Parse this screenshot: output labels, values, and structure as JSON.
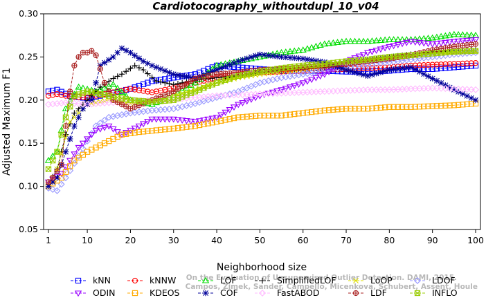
{
  "chart_data": {
    "type": "line",
    "title": "Cardiotocography_withoutdupl_10_v04",
    "xlabel": "Neighborhood size",
    "ylabel": "Adjusted Maximum F1",
    "xlim": [
      1,
      100
    ],
    "ylim": [
      0.05,
      0.3
    ],
    "xticks": [
      1,
      10,
      20,
      30,
      40,
      50,
      60,
      70,
      80,
      90,
      100
    ],
    "yticks": [
      0.05,
      0.1,
      0.15,
      0.2,
      0.25,
      0.3
    ],
    "ytick_labels": [
      "0.05",
      "0.10",
      "0.15",
      "0.20",
      "0.25",
      "0.30"
    ],
    "grid": false,
    "legend_position": "bottom",
    "watermark": [
      "Campos, Zimek, Sander, Campello, Micenkova, Schubert, Assent, Houle",
      "On the Evaluation of Unsupervised Outlier Detection. DAMI, 2015."
    ],
    "series": [
      {
        "name": "kNN",
        "color": "#0000ff",
        "marker": "square",
        "points": [
          [
            1,
            0.21
          ],
          [
            3,
            0.212
          ],
          [
            6,
            0.205
          ],
          [
            10,
            0.202
          ],
          [
            15,
            0.207
          ],
          [
            20,
            0.213
          ],
          [
            25,
            0.222
          ],
          [
            30,
            0.226
          ],
          [
            35,
            0.23
          ],
          [
            40,
            0.24
          ],
          [
            45,
            0.238
          ],
          [
            50,
            0.236
          ],
          [
            55,
            0.234
          ],
          [
            60,
            0.234
          ],
          [
            65,
            0.234
          ],
          [
            70,
            0.233
          ],
          [
            75,
            0.233
          ],
          [
            80,
            0.234
          ],
          [
            85,
            0.236
          ],
          [
            90,
            0.236
          ],
          [
            95,
            0.238
          ],
          [
            100,
            0.24
          ]
        ]
      },
      {
        "name": "kNNW",
        "color": "#ff0000",
        "marker": "circle",
        "points": [
          [
            1,
            0.205
          ],
          [
            3,
            0.207
          ],
          [
            6,
            0.204
          ],
          [
            10,
            0.203
          ],
          [
            15,
            0.208
          ],
          [
            20,
            0.213
          ],
          [
            25,
            0.209
          ],
          [
            30,
            0.214
          ],
          [
            35,
            0.22
          ],
          [
            40,
            0.226
          ],
          [
            45,
            0.23
          ],
          [
            50,
            0.232
          ],
          [
            55,
            0.233
          ],
          [
            60,
            0.234
          ],
          [
            65,
            0.235
          ],
          [
            70,
            0.236
          ],
          [
            75,
            0.237
          ],
          [
            80,
            0.238
          ],
          [
            85,
            0.24
          ],
          [
            90,
            0.241
          ],
          [
            95,
            0.242
          ],
          [
            100,
            0.243
          ]
        ]
      },
      {
        "name": "LOF",
        "color": "#00dd00",
        "marker": "triangle-up",
        "points": [
          [
            1,
            0.13
          ],
          [
            3,
            0.14
          ],
          [
            5,
            0.19
          ],
          [
            8,
            0.215
          ],
          [
            12,
            0.21
          ],
          [
            16,
            0.218
          ],
          [
            20,
            0.2
          ],
          [
            25,
            0.195
          ],
          [
            30,
            0.205
          ],
          [
            35,
            0.22
          ],
          [
            40,
            0.24
          ],
          [
            45,
            0.245
          ],
          [
            50,
            0.25
          ],
          [
            55,
            0.255
          ],
          [
            60,
            0.258
          ],
          [
            65,
            0.265
          ],
          [
            70,
            0.268
          ],
          [
            75,
            0.268
          ],
          [
            80,
            0.27
          ],
          [
            85,
            0.27
          ],
          [
            90,
            0.272
          ],
          [
            95,
            0.276
          ],
          [
            100,
            0.275
          ]
        ]
      },
      {
        "name": "SimplifiedLOF",
        "color": "#000000",
        "marker": "plus",
        "points": [
          [
            1,
            0.102
          ],
          [
            3,
            0.12
          ],
          [
            5,
            0.16
          ],
          [
            7,
            0.185
          ],
          [
            10,
            0.2
          ],
          [
            13,
            0.215
          ],
          [
            16,
            0.225
          ],
          [
            18,
            0.23
          ],
          [
            21,
            0.24
          ],
          [
            23,
            0.235
          ],
          [
            26,
            0.222
          ],
          [
            30,
            0.218
          ],
          [
            35,
            0.223
          ],
          [
            40,
            0.226
          ],
          [
            45,
            0.228
          ],
          [
            50,
            0.232
          ],
          [
            55,
            0.235
          ],
          [
            60,
            0.236
          ],
          [
            65,
            0.238
          ],
          [
            70,
            0.243
          ],
          [
            75,
            0.247
          ],
          [
            80,
            0.25
          ],
          [
            85,
            0.253
          ],
          [
            90,
            0.256
          ],
          [
            95,
            0.257
          ],
          [
            100,
            0.258
          ]
        ]
      },
      {
        "name": "LoOP",
        "color": "#dddd00",
        "marker": "x",
        "points": [
          [
            1,
            0.1
          ],
          [
            3,
            0.12
          ],
          [
            6,
            0.175
          ],
          [
            10,
            0.195
          ],
          [
            15,
            0.2
          ],
          [
            20,
            0.196
          ],
          [
            25,
            0.198
          ],
          [
            30,
            0.205
          ],
          [
            35,
            0.212
          ],
          [
            40,
            0.22
          ],
          [
            45,
            0.226
          ],
          [
            50,
            0.23
          ],
          [
            55,
            0.233
          ],
          [
            60,
            0.236
          ],
          [
            65,
            0.24
          ],
          [
            70,
            0.243
          ],
          [
            75,
            0.245
          ],
          [
            80,
            0.248
          ],
          [
            85,
            0.25
          ],
          [
            90,
            0.253
          ],
          [
            95,
            0.255
          ],
          [
            100,
            0.256
          ]
        ]
      },
      {
        "name": "LDOF",
        "color": "#9999ff",
        "marker": "diamond",
        "points": [
          [
            1,
            0.098
          ],
          [
            3,
            0.095
          ],
          [
            5,
            0.11
          ],
          [
            8,
            0.135
          ],
          [
            12,
            0.17
          ],
          [
            15,
            0.18
          ],
          [
            20,
            0.185
          ],
          [
            25,
            0.188
          ],
          [
            30,
            0.19
          ],
          [
            35,
            0.196
          ],
          [
            40,
            0.203
          ],
          [
            45,
            0.21
          ],
          [
            50,
            0.22
          ],
          [
            55,
            0.226
          ],
          [
            60,
            0.23
          ],
          [
            65,
            0.234
          ],
          [
            70,
            0.238
          ],
          [
            75,
            0.241
          ],
          [
            80,
            0.244
          ],
          [
            85,
            0.247
          ],
          [
            90,
            0.25
          ],
          [
            95,
            0.253
          ],
          [
            100,
            0.255
          ]
        ]
      },
      {
        "name": "ODIN",
        "color": "#9900ff",
        "marker": "triangle-down",
        "points": [
          [
            1,
            0.105
          ],
          [
            4,
            0.115
          ],
          [
            8,
            0.145
          ],
          [
            12,
            0.165
          ],
          [
            15,
            0.17
          ],
          [
            18,
            0.16
          ],
          [
            22,
            0.17
          ],
          [
            25,
            0.178
          ],
          [
            30,
            0.178
          ],
          [
            35,
            0.175
          ],
          [
            40,
            0.18
          ],
          [
            45,
            0.195
          ],
          [
            50,
            0.205
          ],
          [
            55,
            0.212
          ],
          [
            60,
            0.22
          ],
          [
            65,
            0.23
          ],
          [
            70,
            0.245
          ],
          [
            75,
            0.255
          ],
          [
            80,
            0.262
          ],
          [
            85,
            0.268
          ],
          [
            90,
            0.265
          ],
          [
            95,
            0.268
          ],
          [
            100,
            0.27
          ]
        ]
      },
      {
        "name": "KDEOS",
        "color": "#ffaa00",
        "marker": "square",
        "points": [
          [
            1,
            0.1
          ],
          [
            4,
            0.11
          ],
          [
            7,
            0.13
          ],
          [
            10,
            0.14
          ],
          [
            14,
            0.15
          ],
          [
            18,
            0.16
          ],
          [
            22,
            0.163
          ],
          [
            26,
            0.165
          ],
          [
            30,
            0.167
          ],
          [
            35,
            0.17
          ],
          [
            40,
            0.175
          ],
          [
            45,
            0.18
          ],
          [
            50,
            0.182
          ],
          [
            55,
            0.182
          ],
          [
            60,
            0.185
          ],
          [
            65,
            0.188
          ],
          [
            70,
            0.19
          ],
          [
            75,
            0.19
          ],
          [
            80,
            0.192
          ],
          [
            85,
            0.192
          ],
          [
            90,
            0.193
          ],
          [
            95,
            0.194
          ],
          [
            100,
            0.196
          ]
        ]
      },
      {
        "name": "COF",
        "color": "#000099",
        "marker": "asterisk",
        "points": [
          [
            1,
            0.1
          ],
          [
            3,
            0.11
          ],
          [
            5,
            0.14
          ],
          [
            7,
            0.17
          ],
          [
            9,
            0.19
          ],
          [
            11,
            0.2
          ],
          [
            13,
            0.24
          ],
          [
            16,
            0.25
          ],
          [
            18,
            0.26
          ],
          [
            20,
            0.255
          ],
          [
            23,
            0.245
          ],
          [
            25,
            0.24
          ],
          [
            30,
            0.23
          ],
          [
            35,
            0.225
          ],
          [
            40,
            0.235
          ],
          [
            45,
            0.245
          ],
          [
            50,
            0.253
          ],
          [
            55,
            0.25
          ],
          [
            60,
            0.248
          ],
          [
            65,
            0.244
          ],
          [
            70,
            0.235
          ],
          [
            75,
            0.228
          ],
          [
            80,
            0.235
          ],
          [
            85,
            0.238
          ],
          [
            90,
            0.225
          ],
          [
            95,
            0.212
          ],
          [
            100,
            0.2
          ]
        ]
      },
      {
        "name": "FastABOD",
        "color": "#ffbbff",
        "marker": "diamond",
        "points": [
          [
            1,
            0.195
          ],
          [
            5,
            0.197
          ],
          [
            10,
            0.195
          ],
          [
            15,
            0.197
          ],
          [
            20,
            0.198
          ],
          [
            25,
            0.2
          ],
          [
            30,
            0.201
          ],
          [
            35,
            0.203
          ],
          [
            40,
            0.205
          ],
          [
            45,
            0.206
          ],
          [
            50,
            0.207
          ],
          [
            55,
            0.208
          ],
          [
            60,
            0.209
          ],
          [
            65,
            0.21
          ],
          [
            70,
            0.211
          ],
          [
            75,
            0.212
          ],
          [
            80,
            0.212
          ],
          [
            85,
            0.213
          ],
          [
            90,
            0.214
          ],
          [
            95,
            0.213
          ],
          [
            100,
            0.212
          ]
        ]
      },
      {
        "name": "LDF",
        "color": "#aa2222",
        "marker": "circle-plus",
        "points": [
          [
            1,
            0.105
          ],
          [
            2,
            0.11
          ],
          [
            4,
            0.125
          ],
          [
            5,
            0.17
          ],
          [
            6,
            0.21
          ],
          [
            7,
            0.24
          ],
          [
            8,
            0.25
          ],
          [
            9,
            0.255
          ],
          [
            10,
            0.255
          ],
          [
            11,
            0.257
          ],
          [
            12,
            0.252
          ],
          [
            14,
            0.22
          ],
          [
            16,
            0.2
          ],
          [
            18,
            0.195
          ],
          [
            20,
            0.19
          ],
          [
            25,
            0.2
          ],
          [
            30,
            0.21
          ],
          [
            35,
            0.225
          ],
          [
            40,
            0.23
          ],
          [
            45,
            0.232
          ],
          [
            50,
            0.235
          ],
          [
            55,
            0.236
          ],
          [
            60,
            0.238
          ],
          [
            65,
            0.24
          ],
          [
            70,
            0.242
          ],
          [
            75,
            0.245
          ],
          [
            80,
            0.248
          ],
          [
            85,
            0.252
          ],
          [
            90,
            0.258
          ],
          [
            95,
            0.262
          ],
          [
            100,
            0.265
          ]
        ]
      },
      {
        "name": "INFLO",
        "color": "#99cc00",
        "marker": "square-x",
        "points": [
          [
            1,
            0.12
          ],
          [
            3,
            0.14
          ],
          [
            5,
            0.18
          ],
          [
            7,
            0.205
          ],
          [
            10,
            0.21
          ],
          [
            15,
            0.205
          ],
          [
            20,
            0.2
          ],
          [
            25,
            0.198
          ],
          [
            30,
            0.2
          ],
          [
            35,
            0.21
          ],
          [
            40,
            0.22
          ],
          [
            45,
            0.228
          ],
          [
            50,
            0.233
          ],
          [
            55,
            0.237
          ],
          [
            60,
            0.24
          ],
          [
            65,
            0.242
          ],
          [
            70,
            0.245
          ],
          [
            75,
            0.247
          ],
          [
            80,
            0.25
          ],
          [
            85,
            0.252
          ],
          [
            90,
            0.254
          ],
          [
            95,
            0.256
          ],
          [
            100,
            0.257
          ]
        ]
      }
    ]
  }
}
